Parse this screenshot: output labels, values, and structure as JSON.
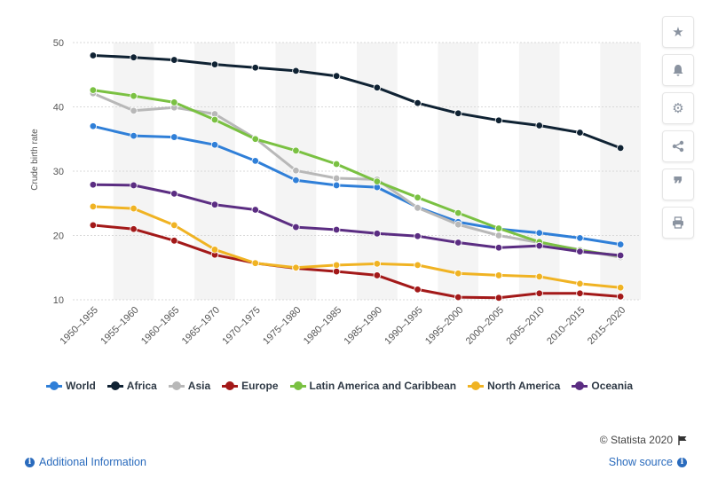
{
  "chart_data": {
    "type": "line",
    "ylabel": "Crude birth rate",
    "xlabel": "",
    "ylim": [
      10,
      50
    ],
    "yticks": [
      "10",
      "20",
      "30",
      "40",
      "50"
    ],
    "categories": [
      "1950-1955",
      "1955-1960",
      "1960-1965",
      "1965-1970",
      "1970-1975",
      "1975-1980",
      "1980-1985",
      "1985-1990",
      "1990-1995",
      "1995-2000",
      "2000-2005",
      "2005-2010",
      "2010-2015",
      "2015-2020"
    ],
    "grid": "horizontal gridlines with alternating vertical column bands",
    "legend_position": "bottom",
    "series": [
      {
        "name": "World",
        "color": "#2f7fd8",
        "values": [
          37.0,
          35.5,
          35.3,
          34.1,
          31.6,
          28.6,
          27.8,
          27.5,
          24.4,
          22.1,
          21.0,
          20.4,
          19.6,
          18.6
        ]
      },
      {
        "name": "Africa",
        "color": "#0f2233",
        "values": [
          48.0,
          47.7,
          47.3,
          46.6,
          46.1,
          45.6,
          44.8,
          43.0,
          40.6,
          39.0,
          37.9,
          37.1,
          36.0,
          33.6
        ]
      },
      {
        "name": "Asia",
        "color": "#b8b8b8",
        "values": [
          42.1,
          39.4,
          39.9,
          38.9,
          35.1,
          30.1,
          28.9,
          28.7,
          24.3,
          21.7,
          20.0,
          18.9,
          17.8,
          16.6
        ]
      },
      {
        "name": "Europe",
        "color": "#a31919",
        "values": [
          21.6,
          21.0,
          19.2,
          17.0,
          15.7,
          14.9,
          14.4,
          13.8,
          11.6,
          10.4,
          10.3,
          11.0,
          11.0,
          10.5
        ]
      },
      {
        "name": "Latin America and Caribbean",
        "color": "#7ac142",
        "values": [
          42.6,
          41.7,
          40.7,
          38.0,
          35.0,
          33.2,
          31.1,
          28.4,
          25.9,
          23.5,
          21.1,
          19.0,
          17.7,
          16.8
        ]
      },
      {
        "name": "North America",
        "color": "#f0b323",
        "values": [
          24.5,
          24.2,
          21.6,
          17.8,
          15.7,
          15.0,
          15.4,
          15.6,
          15.4,
          14.1,
          13.8,
          13.6,
          12.5,
          11.9
        ]
      },
      {
        "name": "Oceania",
        "color": "#5b2d82",
        "values": [
          27.9,
          27.8,
          26.5,
          24.8,
          24.0,
          21.3,
          20.9,
          20.3,
          19.9,
          18.9,
          18.1,
          18.4,
          17.5,
          16.9
        ]
      }
    ]
  },
  "footer": {
    "copyright": "© Statista 2020",
    "additional_info": "Additional Information",
    "show_source": "Show source"
  },
  "sidebar": {
    "icons": [
      "star-icon",
      "bell-icon",
      "gear-icon",
      "share-icon",
      "quote-icon",
      "print-icon"
    ]
  }
}
